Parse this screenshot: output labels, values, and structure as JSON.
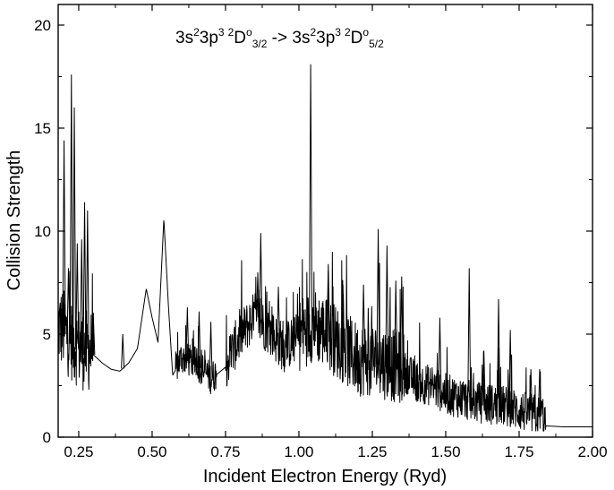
{
  "chart_data": {
    "type": "line",
    "title_parts": {
      "lower_config": "3s",
      "lower_exp1": "2",
      "lower_mid": "3p",
      "lower_exp2": "3",
      "lower_mult": "2",
      "lower_term": "D",
      "lower_parity": "o",
      "lower_j": "3/2",
      "arrow": " -> ",
      "upper_config": "3s",
      "upper_exp1": "2",
      "upper_mid": "3p",
      "upper_exp2": "3",
      "upper_mult": "2",
      "upper_term": "D",
      "upper_parity": "o",
      "upper_j": "5/2"
    },
    "xlabel": "Incident Electron Energy (Ryd)",
    "ylabel": "Collision Strength",
    "xlim": [
      0.18,
      2.0
    ],
    "ylim": [
      0,
      21
    ],
    "x_ticks": [
      "0.25",
      "0.50",
      "0.75",
      "1.00",
      "1.25",
      "1.50",
      "1.75",
      "2.00"
    ],
    "x_tick_values": [
      0.25,
      0.5,
      0.75,
      1.0,
      1.25,
      1.5,
      1.75,
      2.0
    ],
    "y_ticks": [
      "0",
      "5",
      "10",
      "15",
      "20"
    ],
    "y_tick_values": [
      0,
      5,
      10,
      15,
      20
    ],
    "grid": false,
    "legend": "none",
    "line_color": "#000000",
    "envelope": [
      [
        0.18,
        5.2
      ],
      [
        0.2,
        5.0
      ],
      [
        0.22,
        4.6
      ],
      [
        0.24,
        4.3
      ],
      [
        0.27,
        4.0
      ],
      [
        0.3,
        4.0
      ],
      [
        0.33,
        3.6
      ],
      [
        0.36,
        3.3
      ],
      [
        0.39,
        3.2
      ],
      [
        0.42,
        3.6
      ],
      [
        0.45,
        4.3
      ],
      [
        0.48,
        7.2
      ],
      [
        0.5,
        5.8
      ],
      [
        0.52,
        4.6
      ],
      [
        0.54,
        10.6
      ],
      [
        0.555,
        6.5
      ],
      [
        0.57,
        3.0
      ],
      [
        0.6,
        3.8
      ],
      [
        0.65,
        3.5
      ],
      [
        0.7,
        2.8
      ],
      [
        0.75,
        3.4
      ],
      [
        0.8,
        4.8
      ],
      [
        0.85,
        5.8
      ],
      [
        0.9,
        5.0
      ],
      [
        0.95,
        4.2
      ],
      [
        1.0,
        4.8
      ],
      [
        1.05,
        5.3
      ],
      [
        1.1,
        4.8
      ],
      [
        1.15,
        4.2
      ],
      [
        1.2,
        3.6
      ],
      [
        1.25,
        3.6
      ],
      [
        1.3,
        3.4
      ],
      [
        1.35,
        3.2
      ],
      [
        1.4,
        2.6
      ],
      [
        1.45,
        2.4
      ],
      [
        1.5,
        2.0
      ],
      [
        1.55,
        1.8
      ],
      [
        1.6,
        1.6
      ],
      [
        1.65,
        1.5
      ],
      [
        1.7,
        1.4
      ],
      [
        1.75,
        1.2
      ],
      [
        1.8,
        1.0
      ],
      [
        1.83,
        1.0
      ],
      [
        1.84,
        0.55
      ],
      [
        1.9,
        0.5
      ],
      [
        2.0,
        0.5
      ]
    ],
    "spikes": [
      [
        0.2,
        14.4
      ],
      [
        0.215,
        8.2
      ],
      [
        0.225,
        17.6
      ],
      [
        0.235,
        16.0
      ],
      [
        0.245,
        9.4
      ],
      [
        0.26,
        9.6
      ],
      [
        0.27,
        11.4
      ],
      [
        0.28,
        11.0
      ],
      [
        0.3,
        5.8
      ],
      [
        0.4,
        5.0
      ],
      [
        0.62,
        6.3
      ],
      [
        0.66,
        6.1
      ],
      [
        0.7,
        5.6
      ],
      [
        0.86,
        8.0
      ],
      [
        0.87,
        9.9
      ],
      [
        0.93,
        7.3
      ],
      [
        1.04,
        18.1
      ],
      [
        1.1,
        8.4
      ],
      [
        1.15,
        7.4
      ],
      [
        1.22,
        7.4
      ],
      [
        1.27,
        10.1
      ],
      [
        1.3,
        9.3
      ],
      [
        1.33,
        7.6
      ],
      [
        1.35,
        7.8
      ],
      [
        1.48,
        5.8
      ],
      [
        1.58,
        8.2
      ],
      [
        1.63,
        4.2
      ],
      [
        1.68,
        6.7
      ],
      [
        1.72,
        5.2
      ],
      [
        1.79,
        3.3
      ],
      [
        1.82,
        3.3
      ]
    ],
    "noise_bands": [
      [
        0.18,
        0.3,
        2.0
      ],
      [
        0.58,
        0.72,
        0.8
      ],
      [
        0.75,
        1.0,
        1.2
      ],
      [
        1.0,
        1.36,
        1.8
      ],
      [
        1.36,
        1.84,
        1.0
      ]
    ]
  }
}
